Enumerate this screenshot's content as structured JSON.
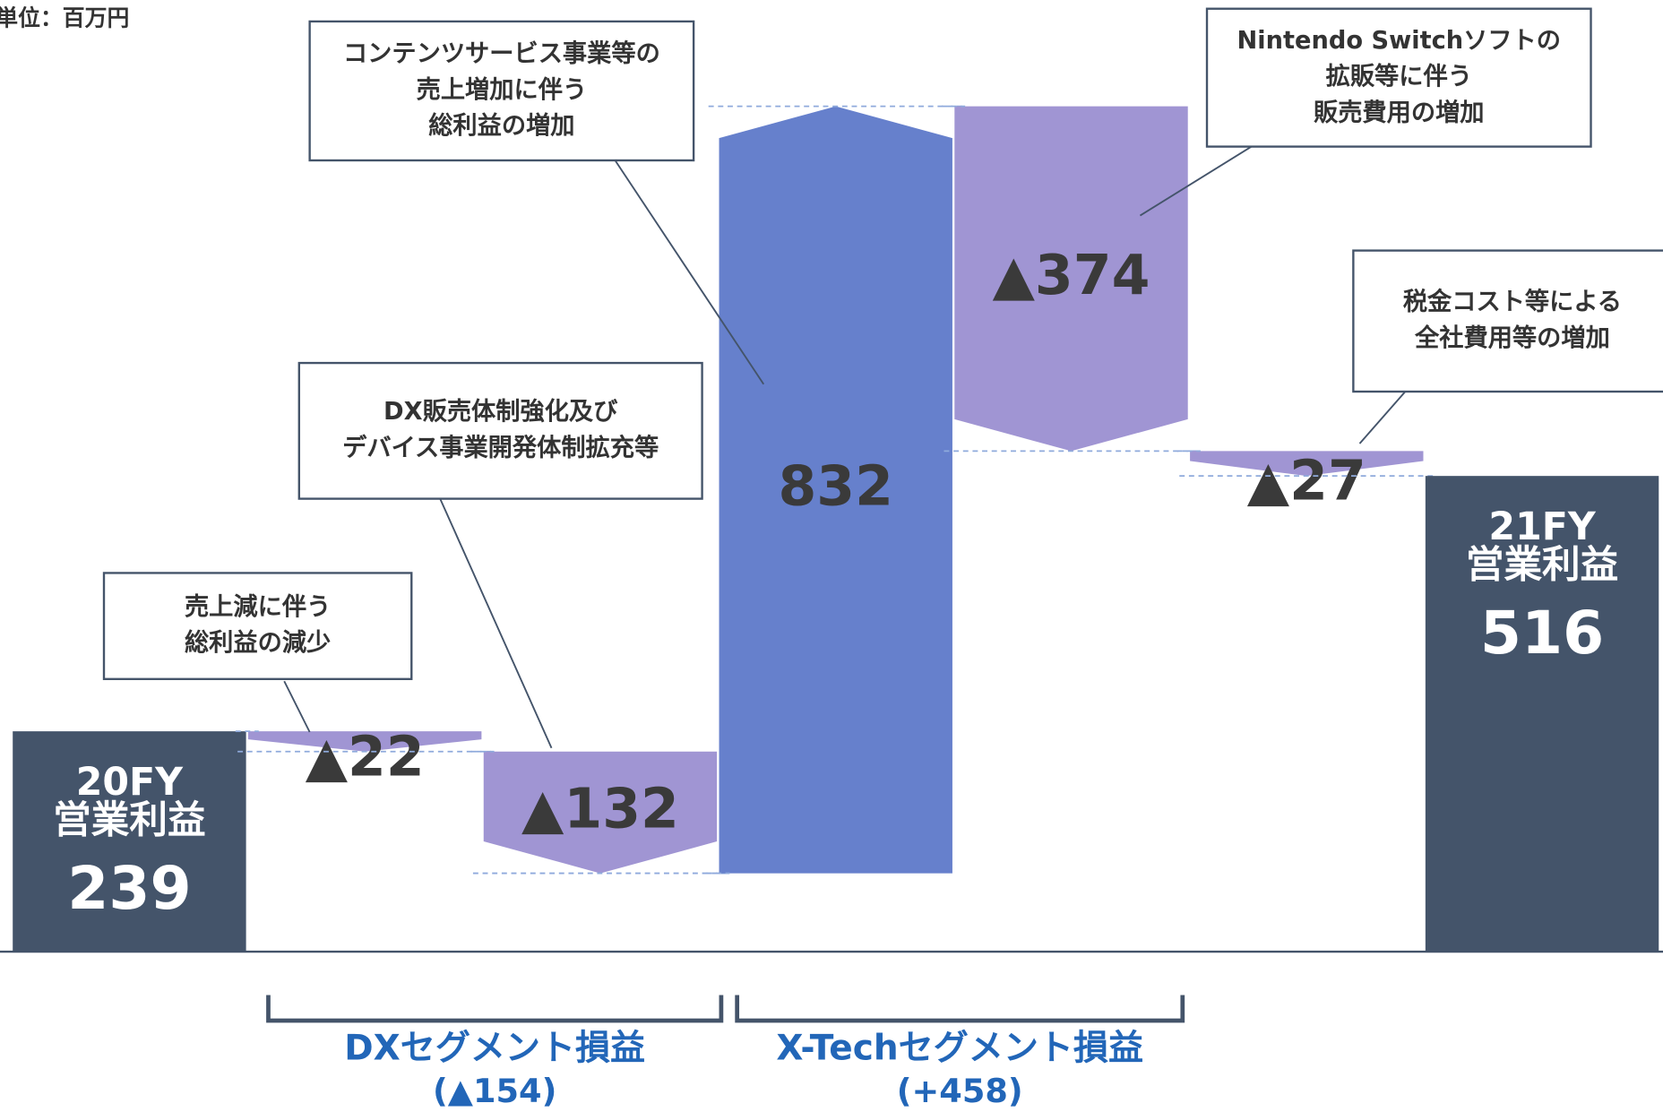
{
  "chart_data": {
    "type": "waterfall",
    "unit": "単位：百万円",
    "categories": [
      [
        "20FY",
        "営業利益"
      ],
      null,
      null,
      null,
      null,
      null,
      [
        "21FY",
        "営業利益"
      ]
    ],
    "values": [
      239,
      -22,
      -132,
      832,
      -374,
      -27,
      516
    ],
    "value_labels": [
      "239",
      "▲22",
      "▲132",
      "832",
      "▲374",
      "▲27",
      "516"
    ],
    "totals": [
      0,
      6
    ],
    "colors": {
      "total": "#44546a",
      "increase": "#6680cc",
      "decrease": "#a095d3"
    },
    "annotations": [
      [
        "売上減に伴う",
        "総利益の減少"
      ],
      [
        "DX販売体制強化及び",
        "デバイス事業開発体制拡充等"
      ],
      [
        "コンテンツサービス事業等の",
        "売上増加に伴う",
        "総利益の増加"
      ],
      [
        "Nintendo Switchソフトの",
        "拡販等に伴う",
        "販売費用の増加"
      ],
      [
        "税金コスト等による",
        "全社費用等の増加"
      ]
    ],
    "segments": [
      {
        "name": "DXセグメント損益",
        "total": {
          "value": -154,
          "label": "(▲154)"
        }
      },
      {
        "name": "X-Techセグメント損益",
        "total": {
          "value": 458,
          "label": "(+458)"
        }
      }
    ]
  }
}
